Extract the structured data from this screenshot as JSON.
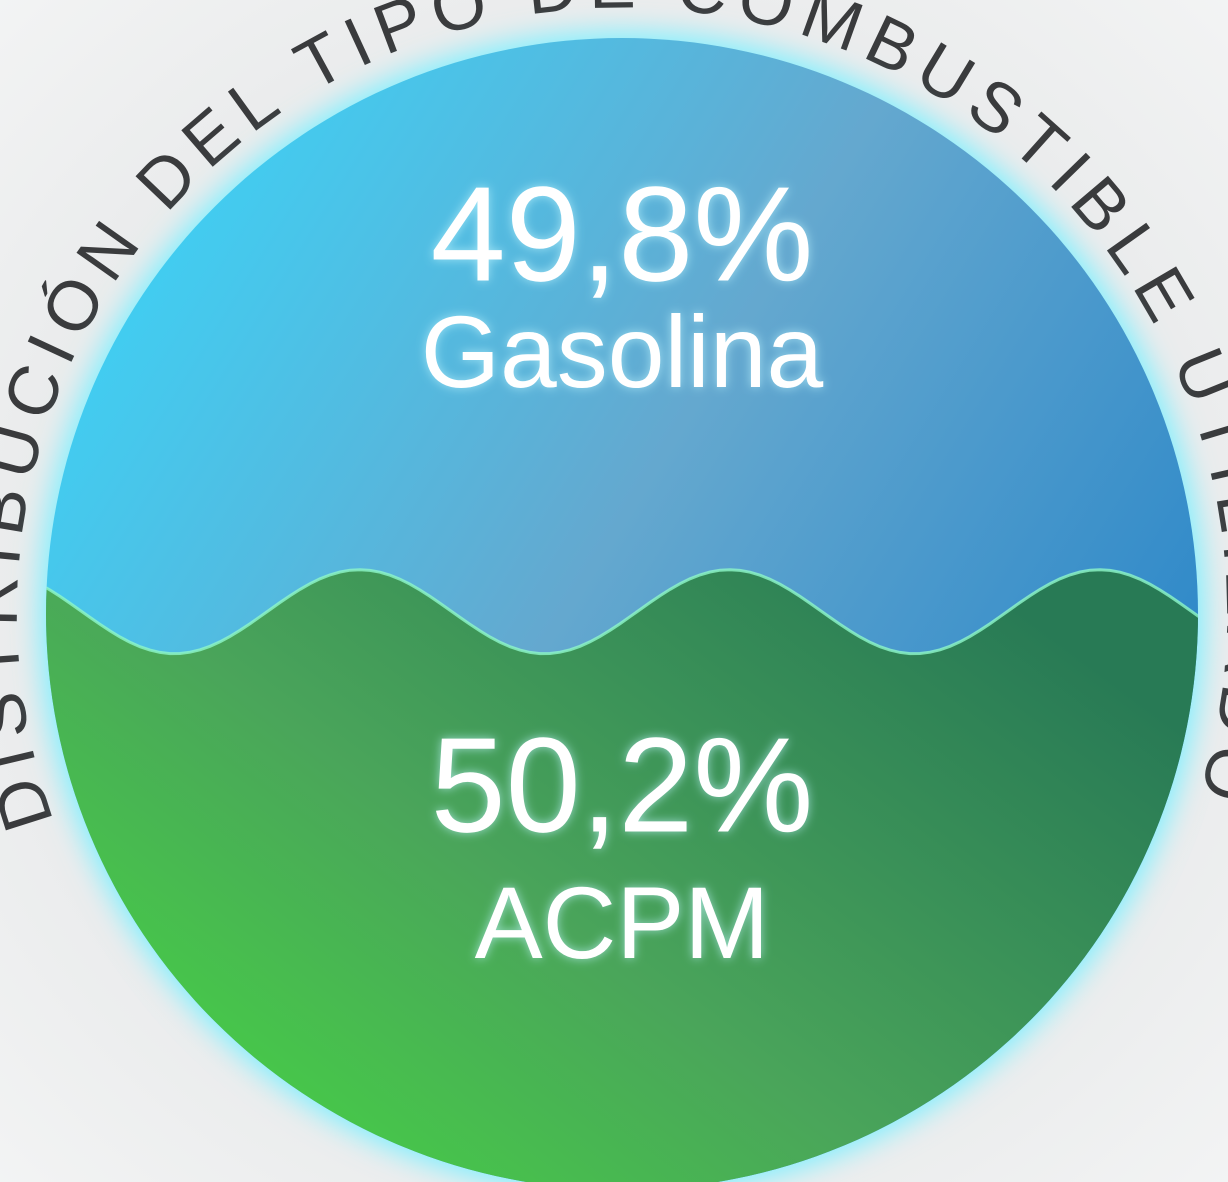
{
  "chart_data": {
    "type": "liquid",
    "title": "DISTRIBUCIÓN DEL TIPO DE COMBUSTIBLE UTILIZADO",
    "categories": [
      "Gasolina",
      "ACPM"
    ],
    "values": [
      49.8,
      50.2
    ],
    "value_labels": [
      "49,8%",
      "50,2%"
    ],
    "colors": [
      "#3fb3e6",
      "#3e9a55"
    ]
  }
}
